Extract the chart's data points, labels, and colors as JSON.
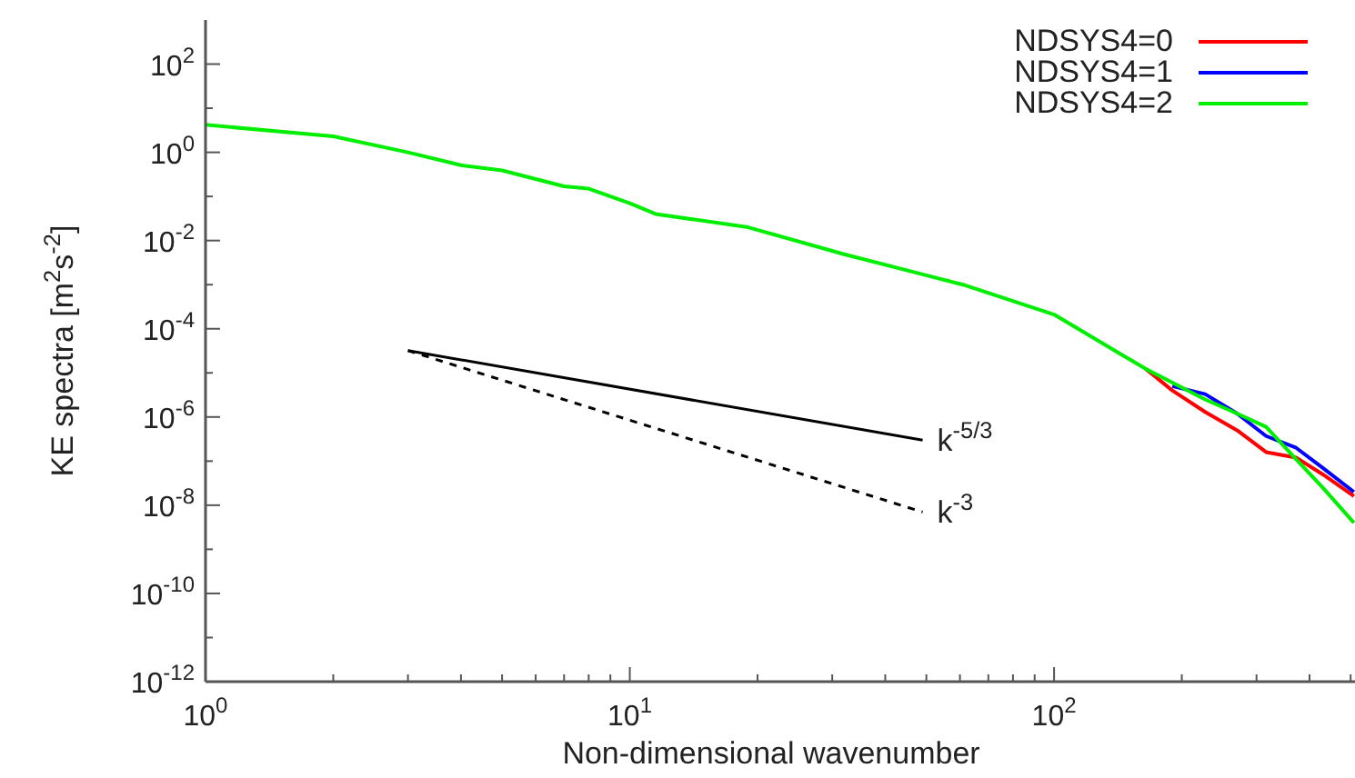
{
  "chart_data": {
    "type": "line",
    "xlabel": "Non-dimensional wavenumber",
    "ylabel": "KE spectra [m$^{2}$s$^{-2}$]",
    "log": "xy",
    "legend": "top right",
    "xlim": [
      1,
      512
    ],
    "xticks": [
      {
        "value": 1,
        "label": "10$^{0}$"
      },
      {
        "value": 2,
        "label": null
      },
      {
        "value": 3,
        "label": null
      },
      {
        "value": 4,
        "label": null
      },
      {
        "value": 5,
        "label": null
      },
      {
        "value": 6,
        "label": null
      },
      {
        "value": 7,
        "label": null
      },
      {
        "value": 8,
        "label": null
      },
      {
        "value": 9,
        "label": null
      },
      {
        "value": 10,
        "label": "10$^{1}$"
      },
      {
        "value": 20,
        "label": null
      },
      {
        "value": 30,
        "label": null
      },
      {
        "value": 40,
        "label": null
      },
      {
        "value": 50,
        "label": null
      },
      {
        "value": 60,
        "label": null
      },
      {
        "value": 70,
        "label": null
      },
      {
        "value": 80,
        "label": null
      },
      {
        "value": 90,
        "label": null
      },
      {
        "value": 100,
        "label": "10$^{2}$"
      },
      {
        "value": 200,
        "label": null
      },
      {
        "value": 300,
        "label": null
      },
      {
        "value": 400,
        "label": null
      },
      {
        "value": 500,
        "label": null
      }
    ],
    "ylim": [
      1e-12,
      1000
    ],
    "yticks": [
      {
        "value": 1e-12,
        "label": "10$^{-12}$"
      },
      {
        "value": 1e-11,
        "label": null
      },
      {
        "value": 1e-10,
        "label": "10$^{-10}$"
      },
      {
        "value": 1e-09,
        "label": null
      },
      {
        "value": 1e-08,
        "label": "10$^{-8}$"
      },
      {
        "value": 1e-07,
        "label": null
      },
      {
        "value": 1e-06,
        "label": "10$^{-6}$"
      },
      {
        "value": 1e-05,
        "label": null
      },
      {
        "value": 0.0001,
        "label": "10$^{-4}$"
      },
      {
        "value": 0.001,
        "label": null
      },
      {
        "value": 0.01,
        "label": "10$^{-2}$"
      },
      {
        "value": 0.1,
        "label": null
      },
      {
        "value": 1,
        "label": "10$^{0}$"
      },
      {
        "value": 10,
        "label": null
      },
      {
        "value": 100,
        "label": "10$^{2}$"
      }
    ],
    "series": [
      {
        "name": "NDSYS4=0",
        "color": "#ff0000",
        "x": [
          164,
          190,
          227,
          270,
          316,
          372,
          430,
          509
        ],
        "values": [
          1.25e-05,
          4e-06,
          1.3e-06,
          5e-07,
          1.6e-07,
          1.2e-07,
          5e-08,
          1.6e-08
        ]
      },
      {
        "name": "NDSYS4=1",
        "color": "#0000ff",
        "x": [
          190,
          227,
          270,
          316,
          372,
          430,
          509
        ],
        "values": [
          5e-06,
          3.3e-06,
          1.2e-06,
          3.7e-07,
          2e-07,
          7e-08,
          2e-08
        ]
      },
      {
        "name": "NDSYS4=2",
        "color": "#00ee00",
        "x": [
          1,
          2,
          3,
          4,
          5,
          7,
          8,
          10,
          11.5,
          19,
          32,
          61,
          100,
          139,
          164,
          190,
          227,
          270,
          316,
          372,
          430,
          509
        ],
        "values": [
          4.2,
          2.3,
          1.0,
          0.51,
          0.39,
          0.17,
          0.15,
          0.07,
          0.04,
          0.02,
          0.0049,
          0.001,
          0.00021,
          3.2e-05,
          1.25e-05,
          6e-06,
          2.5e-06,
          1.2e-06,
          6e-07,
          1.1e-07,
          2.5e-08,
          4e-09
        ]
      },
      {
        "color": "#000000",
        "line_style": "solid",
        "x": [
          3,
          49
        ],
        "values": [
          3.2e-05,
          3e-07
        ]
      },
      {
        "color": "#000000",
        "line_style": "dashed",
        "x": [
          3,
          49
        ],
        "values": [
          3.2e-05,
          7e-09
        ]
      }
    ],
    "annotations": [
      {
        "text": "k$^{-5/3}$",
        "x": 49,
        "y": 3e-07
      },
      {
        "text": "k$^{-3}$",
        "x": 49,
        "y": 7e-09
      }
    ]
  }
}
